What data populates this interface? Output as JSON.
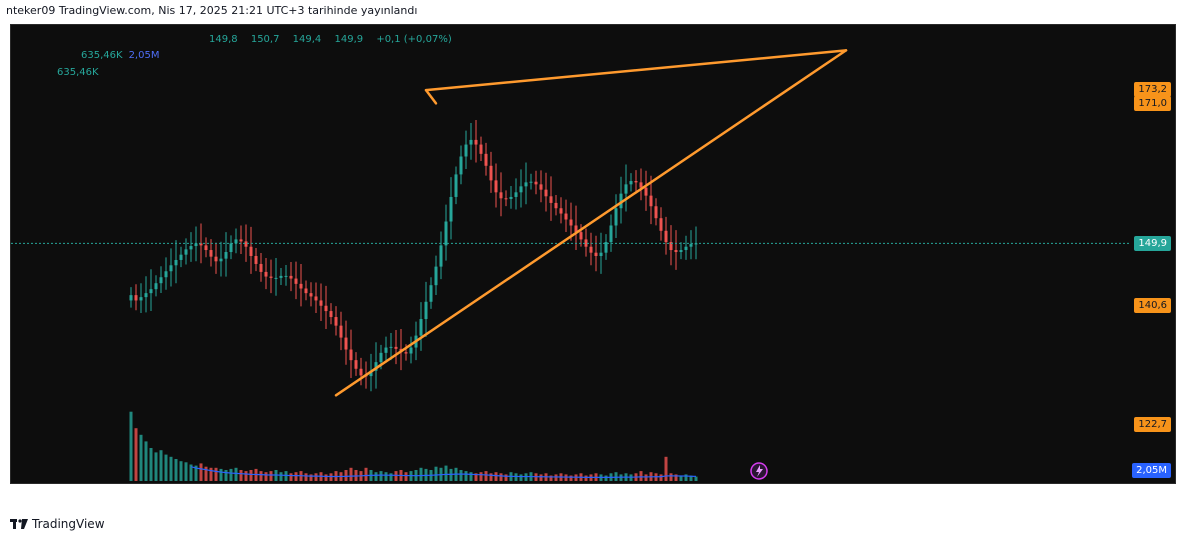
{
  "header": {
    "title": "nteker09 TradingView.com, Nis 17, 2025 21:21 UTC+3 tarihinde yayınlandı"
  },
  "legend": {
    "ohlc": [
      "149,8",
      "150,7",
      "149,4",
      "149,9",
      "+0,1 (+0,07%)"
    ],
    "volume_main": "635,46K",
    "volume_ma": "2,05M",
    "volume_second": "635,46K"
  },
  "price_badges": [
    {
      "label": "173,2",
      "value": 173.2,
      "color": "#f7931a"
    },
    {
      "label": "171,0",
      "value": 171.0,
      "color": "#f7931a"
    },
    {
      "label": "149,9",
      "value": 149.9,
      "color": "#26a69a"
    },
    {
      "label": "140,6",
      "value": 140.6,
      "color": "#f7931a"
    },
    {
      "label": "122,7",
      "value": 122.7,
      "color": "#f7931a"
    }
  ],
  "volume_badge": {
    "label": "2,05M",
    "color": "#2962ff"
  },
  "footer": {
    "brand": "TradingView"
  },
  "chart_data": {
    "type": "candlestick",
    "price_axis_range": [
      118,
      178
    ],
    "last_price": 149.9,
    "colors": {
      "up": "#26a69a",
      "down": "#ef5350",
      "trendline": "#ff9a2e",
      "volume_ma": "#2962ff"
    },
    "close_series": [
      142.1,
      141.3,
      141.8,
      142.4,
      143.0,
      143.9,
      144.8,
      145.7,
      146.6,
      147.4,
      148.2,
      149.0,
      149.5,
      149.9,
      149.6,
      148.9,
      147.9,
      147.2,
      147.6,
      148.6,
      149.9,
      150.5,
      150.2,
      149.4,
      148.0,
      146.8,
      145.6,
      144.9,
      144.7,
      144.7,
      145.0,
      145.0,
      144.6,
      143.8,
      143.1,
      142.4,
      141.9,
      141.3,
      140.5,
      139.7,
      138.8,
      137.5,
      135.7,
      133.9,
      132.3,
      131.0,
      130.0,
      129.9,
      130.7,
      132.0,
      133.4,
      134.2,
      134.3,
      134.0,
      133.5,
      133.3,
      134.2,
      136.0,
      138.5,
      141.1,
      143.6,
      146.4,
      149.6,
      153.2,
      156.9,
      160.3,
      163.0,
      164.8,
      165.5,
      164.8,
      163.4,
      161.6,
      159.4,
      157.6,
      156.7,
      156.6,
      156.9,
      157.6,
      158.5,
      159.1,
      159.2,
      158.8,
      158.0,
      157.0,
      156.0,
      155.2,
      154.4,
      153.5,
      152.6,
      151.6,
      150.5,
      149.4,
      148.5,
      148.0,
      148.5,
      150.1,
      152.6,
      155.2,
      157.4,
      158.8,
      159.3,
      159.1,
      158.3,
      157.1,
      155.5,
      153.7,
      151.8,
      150.1,
      148.9,
      148.6,
      148.9,
      149.4,
      149.8,
      149.9
    ],
    "volume_series": [
      0.63,
      0.48,
      0.42,
      0.36,
      0.3,
      0.26,
      0.28,
      0.24,
      0.22,
      0.2,
      0.18,
      0.17,
      0.15,
      0.14,
      0.16,
      0.13,
      0.12,
      0.12,
      0.11,
      0.1,
      0.11,
      0.12,
      0.1,
      0.09,
      0.1,
      0.11,
      0.09,
      0.08,
      0.09,
      0.1,
      0.08,
      0.09,
      0.07,
      0.08,
      0.09,
      0.07,
      0.06,
      0.07,
      0.08,
      0.06,
      0.07,
      0.09,
      0.08,
      0.1,
      0.12,
      0.1,
      0.09,
      0.12,
      0.1,
      0.08,
      0.09,
      0.08,
      0.07,
      0.09,
      0.1,
      0.08,
      0.09,
      0.1,
      0.12,
      0.11,
      0.1,
      0.13,
      0.12,
      0.14,
      0.11,
      0.12,
      0.1,
      0.09,
      0.08,
      0.07,
      0.08,
      0.09,
      0.07,
      0.08,
      0.07,
      0.06,
      0.08,
      0.07,
      0.06,
      0.07,
      0.08,
      0.07,
      0.06,
      0.07,
      0.05,
      0.06,
      0.07,
      0.06,
      0.05,
      0.06,
      0.07,
      0.05,
      0.06,
      0.07,
      0.06,
      0.05,
      0.07,
      0.08,
      0.06,
      0.07,
      0.06,
      0.07,
      0.09,
      0.06,
      0.08,
      0.07,
      0.06,
      0.22,
      0.07,
      0.06,
      0.05,
      0.06,
      0.05,
      0.04
    ],
    "trendlines": [
      {
        "name": "upper",
        "from": {
          "bar": 59,
          "price": 173.0
        },
        "to": {
          "bar": 143,
          "price": 179.0
        }
      },
      {
        "name": "lower",
        "from": {
          "bar": 41,
          "price": 127.0
        },
        "to": {
          "bar": 143,
          "price": 179.0
        }
      },
      {
        "name": "connector",
        "from": {
          "bar": 59,
          "price": 173.0
        },
        "to": {
          "bar": 61,
          "price": 171.0
        }
      }
    ],
    "bar_count_visible": 144
  }
}
